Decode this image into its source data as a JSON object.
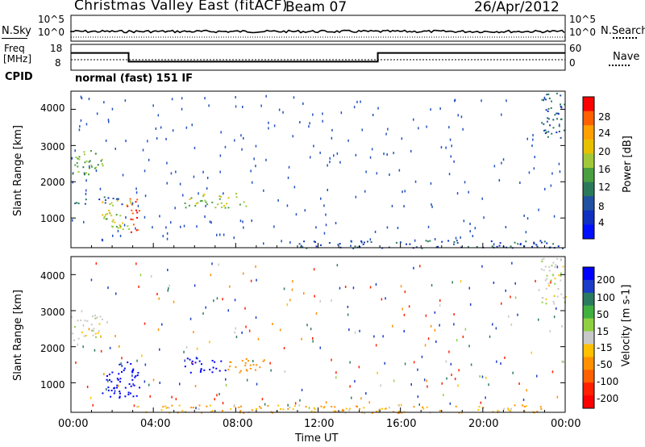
{
  "header": {
    "title": "Christmas Valley East (fitACF)",
    "beam": "Beam 07",
    "date": "26/Apr/2012"
  },
  "top_panel": {
    "left_label": "N.Sky",
    "right_label": "N.Search",
    "left_ticks": [
      "10^5",
      "10^0"
    ],
    "right_ticks": [
      "10^5",
      "10^0"
    ]
  },
  "freq_panel": {
    "left_label_1": "Freq",
    "left_label_2": "[MHz]",
    "right_label": "Nave",
    "left_ticks": [
      "18",
      "8"
    ],
    "right_ticks": [
      "60",
      "0"
    ]
  },
  "cpid": {
    "label": "CPID",
    "value": "normal (fast) 151 IF"
  },
  "power_colorbar": {
    "label": "Power [dB]",
    "ticks": [
      "28",
      "24",
      "20",
      "16",
      "12",
      "8",
      "4"
    ],
    "colors": [
      "#ff0000",
      "#ff6000",
      "#ffa000",
      "#e8c000",
      "#a0c838",
      "#48a040",
      "#2a7a5a",
      "#2050a0",
      "#1030c0",
      "#0010ff"
    ]
  },
  "velocity_colorbar": {
    "label": "Velocity [m s-1]",
    "ticks": [
      "200",
      "100",
      "50",
      "15",
      "-15",
      "-50",
      "-100",
      "-200"
    ],
    "colors": [
      "#0000ff",
      "#1a3cc8",
      "#2a7a60",
      "#40b040",
      "#90d040",
      "#c8c8c8",
      "#ffc000",
      "#ff9000",
      "#ff6000",
      "#ff2000",
      "#ff0000"
    ]
  },
  "axes": {
    "ylabel": "Slant Range [km]",
    "xlabel": "Time UT",
    "y_ticks": [
      "4000",
      "3000",
      "2000",
      "1000"
    ],
    "x_ticks": [
      "00:00",
      "04:00",
      "08:00",
      "12:00",
      "16:00",
      "20:00",
      "00:00"
    ]
  },
  "chart_data": {
    "type": "heatmap",
    "title": "Christmas Valley East (fitACF)",
    "xlabel": "Time UT",
    "ylabel": "Slant Range [km]",
    "xlim_hours": [
      0,
      24
    ],
    "ylim_km": [
      180,
      4500
    ],
    "frequency_mhz_steps": [
      {
        "start_h": 0.0,
        "end_h": 2.8,
        "freq_mhz": 15
      },
      {
        "start_h": 2.8,
        "end_h": 14.9,
        "freq_mhz": 10
      },
      {
        "start_h": 14.9,
        "end_h": 24.0,
        "freq_mhz": 15
      }
    ],
    "power_echo_regions": [
      {
        "t0": 0.0,
        "t1": 1.6,
        "r0": 2200,
        "r1": 2900,
        "power_db": 14
      },
      {
        "t0": 1.5,
        "t1": 2.9,
        "r0": 700,
        "r1": 1600,
        "power_db": 18
      },
      {
        "t0": 2.7,
        "t1": 3.3,
        "r0": 600,
        "r1": 1600,
        "power_db": 30
      },
      {
        "t0": 5.5,
        "t1": 8.5,
        "r0": 1300,
        "r1": 1700,
        "power_db": 16
      },
      {
        "t0": 0.0,
        "t1": 2.5,
        "r0": 1400,
        "r1": 1600,
        "power_db": 6
      },
      {
        "t0": 22.8,
        "t1": 24.0,
        "r0": 3200,
        "r1": 4500,
        "power_db": 8
      },
      {
        "t0": 11.0,
        "t1": 24.0,
        "r0": 180,
        "r1": 400,
        "power_db": 6
      }
    ],
    "velocity_echo_regions": [
      {
        "t0": 0.0,
        "t1": 1.5,
        "r0": 2200,
        "r1": 2900,
        "velocity_ms": 0
      },
      {
        "t0": 1.5,
        "t1": 3.3,
        "r0": 600,
        "r1": 1600,
        "velocity_ms": 200
      },
      {
        "t0": 5.5,
        "t1": 7.5,
        "r0": 1300,
        "r1": 1700,
        "velocity_ms": 200
      },
      {
        "t0": 7.5,
        "t1": 9.4,
        "r0": 1300,
        "r1": 1700,
        "velocity_ms": -50
      },
      {
        "t0": 22.8,
        "t1": 24.0,
        "r0": 3200,
        "r1": 4500,
        "velocity_ms": 0
      },
      {
        "t0": 3.0,
        "t1": 23.0,
        "r0": 180,
        "r1": 400,
        "velocity_ms": -30
      }
    ]
  }
}
